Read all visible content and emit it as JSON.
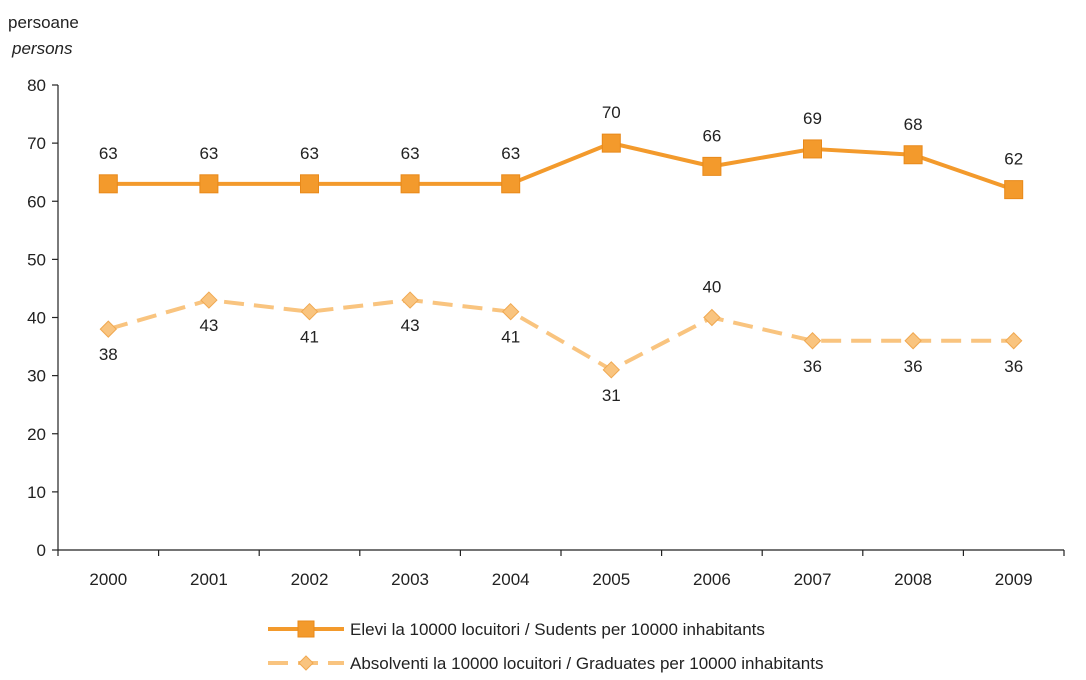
{
  "unit": {
    "primary": "persoane",
    "secondary": "persons"
  },
  "chart_data": {
    "type": "line",
    "categories": [
      "2000",
      "2001",
      "2002",
      "2003",
      "2004",
      "2005",
      "2006",
      "2007",
      "2008",
      "2009"
    ],
    "ylim": [
      0,
      80
    ],
    "yticks": [
      0,
      10,
      20,
      30,
      40,
      50,
      60,
      70,
      80
    ],
    "grid": false,
    "legend_position": "bottom",
    "series": [
      {
        "name": "Elevi la 10000 locuitori / Sudents per 10000 inhabitants",
        "values": [
          63,
          63,
          63,
          63,
          63,
          70,
          66,
          69,
          68,
          62
        ],
        "color": "#f39a2c",
        "marker": "square",
        "line_style": "solid",
        "label_position": "above"
      },
      {
        "name": "Absolventi la 10000 locuitori / Graduates per 10000 inhabitants",
        "values": [
          38,
          43,
          41,
          43,
          41,
          31,
          40,
          36,
          36,
          36
        ],
        "color": "#f9c47f",
        "marker": "diamond",
        "line_style": "dashed",
        "label_position": [
          "below",
          "below",
          "below",
          "below",
          "below",
          "below",
          "above",
          "below",
          "below",
          "below"
        ]
      }
    ]
  }
}
